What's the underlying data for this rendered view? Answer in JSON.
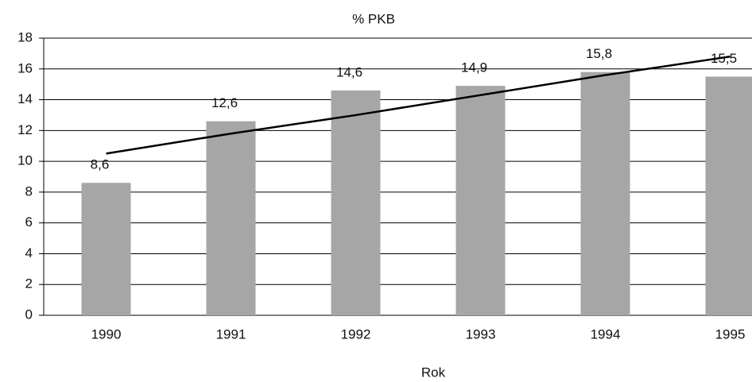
{
  "chart_data": {
    "type": "bar",
    "title": "% PKB",
    "x_label": "Rok",
    "categories": [
      "1990",
      "1991",
      "1992",
      "1993",
      "1994",
      "1995"
    ],
    "values": [
      8.6,
      12.6,
      14.6,
      14.9,
      15.8,
      15.5
    ],
    "value_labels": [
      "8,6",
      "12,6",
      "14,6",
      "14,9",
      "15,8",
      "15,5"
    ],
    "color": "#a6a6a6",
    "trendline": {
      "color": "#000000",
      "values": [
        10.5,
        11.8,
        13.0,
        14.3,
        15.6,
        16.8
      ]
    },
    "ylim": [
      0,
      18
    ],
    "yticks": [
      0,
      2,
      4,
      6,
      8,
      10,
      12,
      14,
      16,
      18
    ],
    "grid": true
  }
}
